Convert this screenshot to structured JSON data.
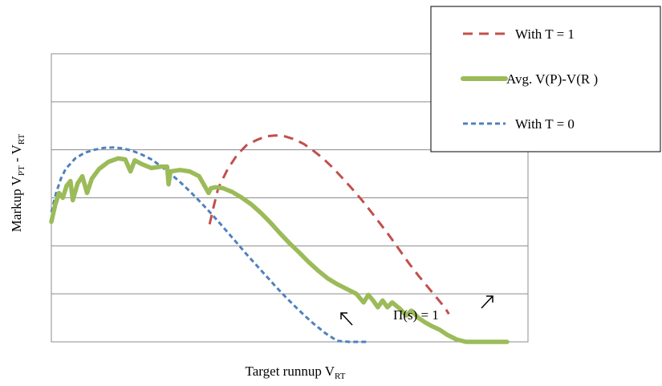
{
  "chart_data": {
    "type": "line",
    "xlabel": {
      "main": "Target runnup V",
      "sub": "RT"
    },
    "ylabel": {
      "main": "Markup V",
      "sub1": "PT",
      "mid": " - V",
      "sub2": "RT"
    },
    "xlim": [
      0,
      100
    ],
    "ylim": [
      0,
      6
    ],
    "grid": true,
    "legend_position": "top-right",
    "annotation": "Π(s) = 1",
    "series": [
      {
        "name": "With T = 1",
        "color": "#c0504d",
        "style": "dashed",
        "x": [
          33.2,
          34,
          35,
          37,
          39,
          41,
          43,
          45,
          47,
          49,
          51,
          53,
          55,
          57,
          59,
          61,
          63,
          65,
          67,
          69,
          71,
          73,
          75,
          77,
          79,
          81,
          82.5,
          83.4
        ],
        "y": [
          2.45,
          2.8,
          3.2,
          3.6,
          3.9,
          4.1,
          4.2,
          4.28,
          4.3,
          4.28,
          4.22,
          4.12,
          3.98,
          3.82,
          3.63,
          3.42,
          3.2,
          2.97,
          2.72,
          2.46,
          2.2,
          1.92,
          1.64,
          1.38,
          1.14,
          0.9,
          0.72,
          0.58
        ]
      },
      {
        "name": "Avg. V(P)-V(R )",
        "color": "#9bbb59",
        "style": "solid",
        "x": [
          0,
          0.8,
          1.6,
          2.4,
          3.2,
          4.0,
          4.5,
          5.5,
          6.5,
          7.5,
          8.5,
          10,
          12,
          14,
          15.5,
          16.6,
          17.5,
          19,
          21,
          23,
          24.3,
          24.6,
          25,
          27,
          29,
          31,
          33,
          33.5,
          34.5,
          36,
          38,
          40,
          42,
          44,
          46,
          48,
          50,
          52,
          54,
          56,
          58,
          60,
          62,
          64,
          65.5,
          66.5,
          67.5,
          68.5,
          69.5,
          70.5,
          71.5,
          73,
          74.5,
          75.5,
          77,
          78.5,
          80,
          81.5,
          83,
          85,
          87,
          89,
          91,
          93,
          95.6
        ],
        "y": [
          2.5,
          2.85,
          3.1,
          3.0,
          3.25,
          3.35,
          2.95,
          3.3,
          3.45,
          3.1,
          3.4,
          3.6,
          3.75,
          3.82,
          3.8,
          3.55,
          3.78,
          3.7,
          3.62,
          3.65,
          3.65,
          3.28,
          3.55,
          3.58,
          3.55,
          3.45,
          3.1,
          3.2,
          3.22,
          3.2,
          3.12,
          3.0,
          2.86,
          2.68,
          2.48,
          2.26,
          2.05,
          1.86,
          1.66,
          1.48,
          1.32,
          1.2,
          1.1,
          1.0,
          0.82,
          0.98,
          0.86,
          0.72,
          0.86,
          0.72,
          0.82,
          0.7,
          0.55,
          0.65,
          0.5,
          0.4,
          0.32,
          0.25,
          0.15,
          0.05,
          0,
          0,
          0,
          0,
          0
        ]
      },
      {
        "name": "With  T = 0",
        "color": "#4f81bd",
        "style": "dashed",
        "x": [
          0,
          1,
          2,
          3,
          5,
          7,
          9,
          11,
          13,
          15,
          17,
          19,
          21,
          23,
          25,
          27,
          29,
          31,
          33,
          35,
          37,
          39,
          41,
          43,
          45,
          47,
          49,
          51,
          53,
          55,
          57.5,
          60,
          62.5,
          66.5
        ],
        "y": [
          2.7,
          3.1,
          3.4,
          3.6,
          3.82,
          3.94,
          4.0,
          4.04,
          4.05,
          4.03,
          3.98,
          3.9,
          3.8,
          3.66,
          3.5,
          3.33,
          3.14,
          2.94,
          2.73,
          2.51,
          2.28,
          2.05,
          1.82,
          1.6,
          1.38,
          1.16,
          0.95,
          0.75,
          0.56,
          0.38,
          0.18,
          0.02,
          0,
          0
        ]
      }
    ]
  }
}
